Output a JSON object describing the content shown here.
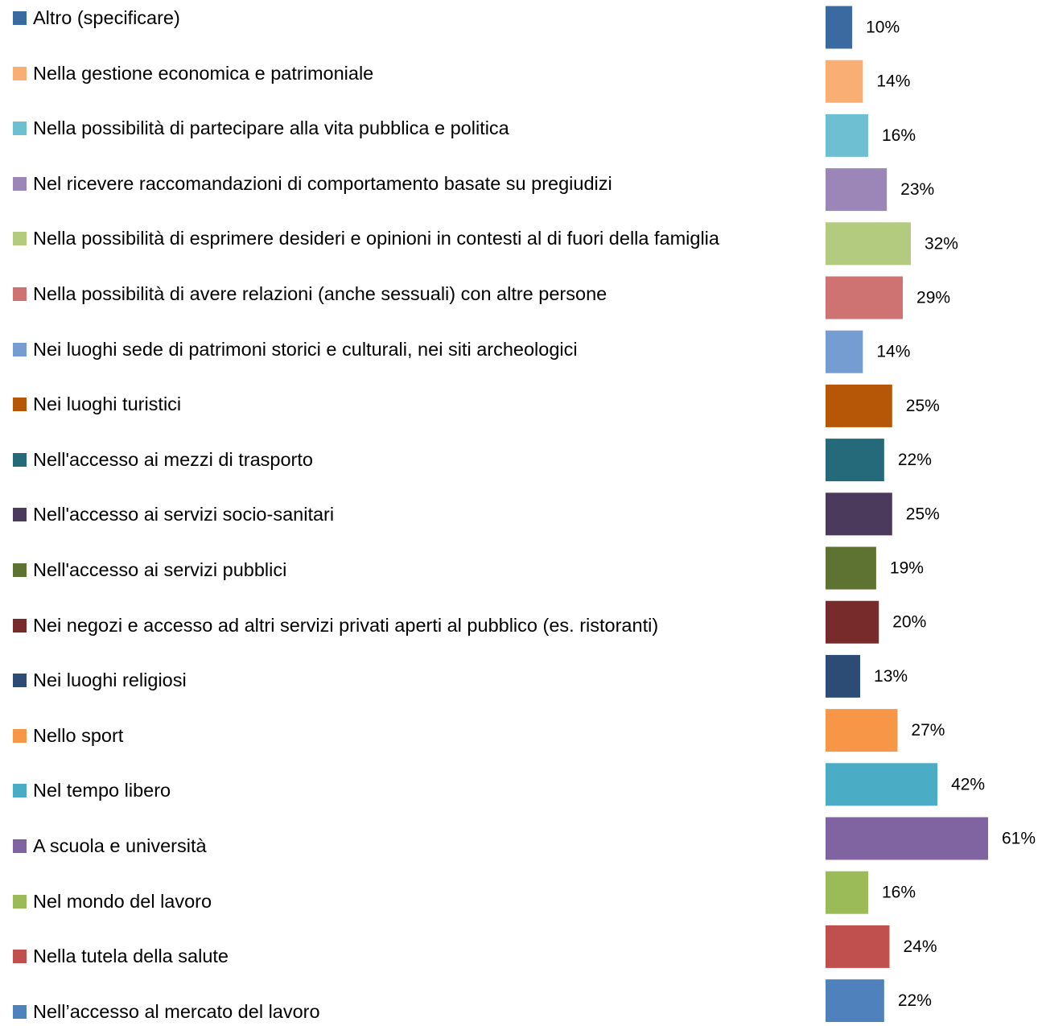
{
  "chart_data": {
    "type": "bar",
    "categories": [
      "Altro (specificare)",
      "Nella gestione economica e patrimoniale",
      "Nella possibilità di partecipare alla vita pubblica e politica",
      "Nel ricevere raccomandazioni di comportamento basate su pregiudizi",
      "Nella possibilità di esprimere desideri e opinioni in contesti al di fuori della famiglia",
      "Nella possibilità di avere relazioni (anche sessuali) con altre persone",
      "Nei luoghi sede di patrimoni storici e culturali, nei siti archeologici",
      "Nei luoghi turistici",
      "Nell'accesso ai mezzi di trasporto",
      "Nell'accesso ai servizi socio-sanitari",
      "Nell'accesso ai servizi pubblici",
      "Nei negozi e accesso ad altri servizi privati aperti al pubblico (es. ristoranti)",
      "Nei luoghi religiosi",
      "Nello sport",
      "Nel tempo libero",
      "A scuola e università",
      "Nel mondo del lavoro",
      "Nella tutela della salute",
      "Nell’accesso al mercato del lavoro"
    ],
    "values": [
      10,
      14,
      16,
      23,
      32,
      29,
      14,
      25,
      22,
      25,
      19,
      20,
      13,
      27,
      42,
      61,
      16,
      24,
      22
    ],
    "value_labels": [
      "10%",
      "14%",
      "16%",
      "23%",
      "32%",
      "29%",
      "14%",
      "25%",
      "22%",
      "25%",
      "19%",
      "20%",
      "13%",
      "27%",
      "42%",
      "61%",
      "16%",
      "24%",
      "22%"
    ],
    "colors": [
      "#3b6aa0",
      "#f9ae73",
      "#6fbfd2",
      "#9c86b8",
      "#b2cb7e",
      "#cf7372",
      "#769dd1",
      "#b65708",
      "#246a7b",
      "#4b3a5c",
      "#5e7231",
      "#772b2b",
      "#2c4c76",
      "#f79646",
      "#4bacc6",
      "#8064a2",
      "#9bbb59",
      "#c0504d",
      "#4f81bd"
    ]
  }
}
